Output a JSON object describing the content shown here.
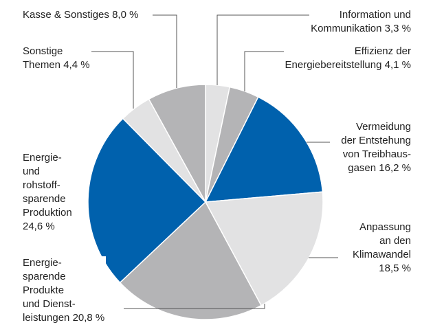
{
  "chart_data": {
    "type": "pie",
    "categories": [
      "Information und\nKommunikation",
      "Effizienz der\nEnergiebereitstellung",
      "Vermeidung\nder Entstehung\nvon Treibhaus-\ngasen",
      "Anpassung\nan den\nKlimawandel",
      "Energie-\nsparende\nProdukte\nund Dienst-\nleistungen",
      "Energie-\nund\nrohstoff-\nsparende\nProduktion",
      "Sonstige\nThemen",
      "Kasse & Sonstiges"
    ],
    "values": [
      3.3,
      4.1,
      16.2,
      18.5,
      20.8,
      24.6,
      4.4,
      8.0
    ],
    "value_labels": [
      "3,3 %",
      "4,1 %",
      "16,2 %",
      "18,5 %",
      "20,8 %",
      "24,6 %",
      "4,4 %",
      "8,0 %"
    ],
    "colors": [
      "#e2e2e3",
      "#b4b4b6",
      "#0061ad",
      "#e2e2e3",
      "#b4b4b6",
      "#0061ad",
      "#e2e2e3",
      "#b4b4b6"
    ]
  }
}
